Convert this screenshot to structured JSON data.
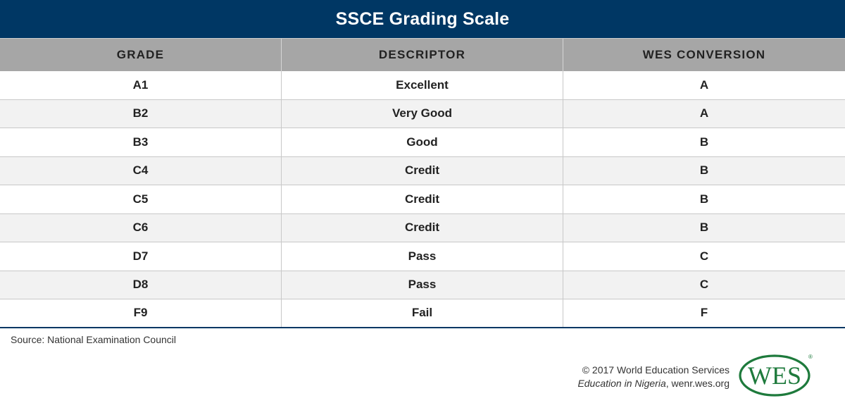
{
  "title": "SSCE Grading Scale",
  "table": {
    "headers": [
      "GRADE",
      "DESCRIPTOR",
      "WES CONVERSION"
    ],
    "rows": [
      [
        "A1",
        "Excellent",
        "A"
      ],
      [
        "B2",
        "Very Good",
        "A"
      ],
      [
        "B3",
        "Good",
        "B"
      ],
      [
        "C4",
        "Credit",
        "B"
      ],
      [
        "C5",
        "Credit",
        "B"
      ],
      [
        "C6",
        "Credit",
        "B"
      ],
      [
        "D7",
        "Pass",
        "C"
      ],
      [
        "D8",
        "Pass",
        "C"
      ],
      [
        "F9",
        "Fail",
        "F"
      ]
    ]
  },
  "source": "Source: National Examination Council",
  "credits": {
    "copyright": "© 2017 World Education Services",
    "publication": "Education in Nigeria",
    "site": ", wenr.wes.org"
  },
  "logo": {
    "text": "WES",
    "mark": "®",
    "color": "#1e7a3c"
  },
  "colors": {
    "title_bg": "#003764",
    "header_bg": "#a6a6a6",
    "alt_row_bg": "#f2f2f2"
  }
}
